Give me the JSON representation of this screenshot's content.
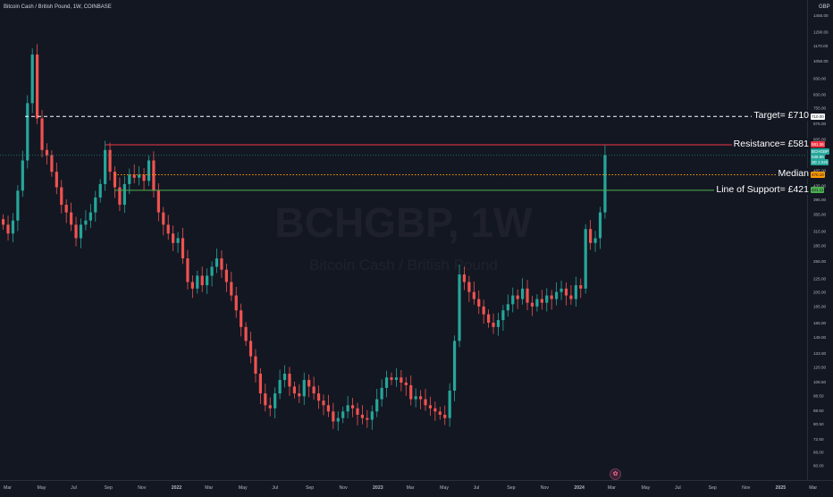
{
  "header": {
    "symbol_title": "Bitcoin Cash / British Pound, 1W, COINBASE",
    "currency": "GBP"
  },
  "watermark": {
    "ticker": "BCHGBP, 1W",
    "description": "Bitcoin Cash / British Pound"
  },
  "annotations": {
    "target": "Target= £710",
    "resistance": "Resistance= £581",
    "median": "Median",
    "support": "Line of Support= £421"
  },
  "price_tags": {
    "target": "710.00",
    "resistance": "581.36",
    "symbol_label": "BCHGBP",
    "last_price": "538.96",
    "countdown": "3D 1:04h",
    "median": "470.10",
    "support": "421.11"
  },
  "colors": {
    "background": "#131722",
    "up_candle": "#26a69a",
    "down_candle": "#ef5350",
    "resistance": "#f23645",
    "median": "#ff9800",
    "support": "#4caf50",
    "target": "#ffffff"
  },
  "chart_data": {
    "type": "candlestick",
    "title": "Bitcoin Cash / British Pound, 1W, COINBASE",
    "y_scale": "log",
    "ylim": [
      57,
      1500
    ],
    "y_ticks": [
      1450.0,
      1290.0,
      1170.0,
      1050.0,
      930.0,
      830.0,
      755.0,
      675.0,
      605.0,
      545.0,
      485.0,
      435.0,
      395.0,
      355.0,
      315.0,
      285.0,
      255.0,
      225.0,
      205.0,
      185.0,
      165.0,
      149.0,
      133.0,
      120.5,
      108.5,
      98.5,
      88.5,
      80.5,
      72.5,
      66.0,
      60.0
    ],
    "x_ticks": [
      "Mar",
      "May",
      "Jul",
      "Sep",
      "Nov",
      "2022",
      "Mar",
      "May",
      "Jul",
      "Sep",
      "Nov",
      "2023",
      "Mar",
      "May",
      "Jul",
      "Sep",
      "Nov",
      "2024",
      "Mar",
      "May",
      "Jul",
      "Sep",
      "Nov",
      "2025",
      "Mar"
    ],
    "horizontal_lines": [
      {
        "name": "Target",
        "value": 710,
        "style": "dashed"
      },
      {
        "name": "Resistance",
        "value": 581,
        "style": "solid"
      },
      {
        "name": "Median",
        "value": 470,
        "style": "dotted"
      },
      {
        "name": "Line of Support",
        "value": 421,
        "style": "solid"
      }
    ],
    "last_price": 538.96,
    "weekly_closes": [
      330,
      310,
      340,
      420,
      520,
      780,
      1100,
      700,
      560,
      540,
      480,
      430,
      380,
      360,
      330,
      300,
      330,
      340,
      360,
      400,
      440,
      560,
      480,
      430,
      380,
      440,
      470,
      460,
      470,
      450,
      520,
      420,
      360,
      330,
      310,
      290,
      300,
      260,
      220,
      210,
      230,
      215,
      230,
      245,
      260,
      240,
      220,
      200,
      180,
      160,
      145,
      130,
      115,
      100,
      92,
      90,
      100,
      110,
      115,
      105,
      100,
      98,
      110,
      105,
      100,
      95,
      92,
      88,
      82,
      84,
      88,
      92,
      90,
      86,
      84,
      83,
      88,
      96,
      104,
      112,
      110,
      112,
      108,
      106,
      96,
      98,
      96,
      92,
      90,
      88,
      86,
      84,
      102,
      145,
      232,
      220,
      205,
      195,
      185,
      175,
      165,
      160,
      168,
      180,
      188,
      200,
      195,
      210,
      190,
      185,
      195,
      190,
      200,
      195,
      205,
      210,
      200,
      195,
      215,
      210,
      320,
      290,
      300,
      360,
      540
    ]
  }
}
